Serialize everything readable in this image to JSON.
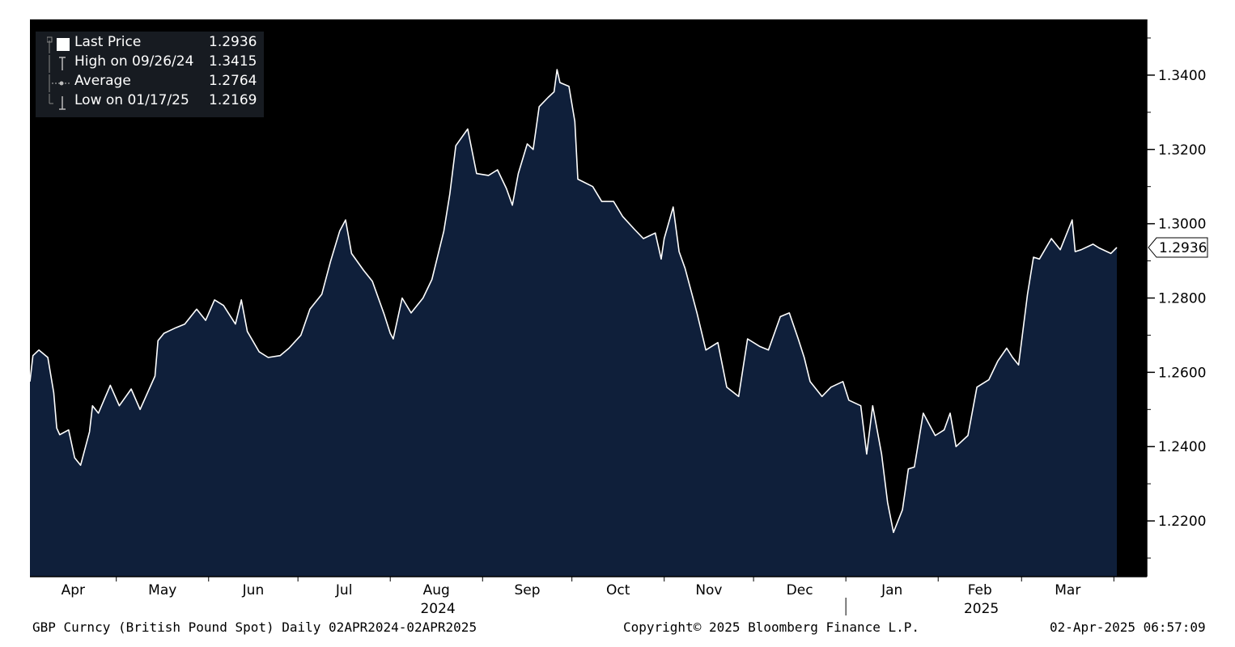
{
  "legend": {
    "items": [
      {
        "label": "Last Price",
        "value": "1.2936",
        "icon": "white-square-icon"
      },
      {
        "label": "High on 09/26/24",
        "value": "1.3415",
        "icon": "high-marker-icon"
      },
      {
        "label": "Average",
        "value": "1.2764",
        "icon": "average-line-icon"
      },
      {
        "label": "Low on 01/17/25",
        "value": "1.2169",
        "icon": "low-marker-icon"
      }
    ]
  },
  "footer": {
    "left": "GBP Curncy (British Pound Spot)  Daily 02APR2024-02APR2025",
    "center": "Copyright© 2025 Bloomberg Finance L.P.",
    "right": "02-Apr-2025 06:57:09"
  },
  "last_price_tag": "1.2936",
  "colors": {
    "plot_background": "#000000",
    "area_fill": "#0f1f3a",
    "line": "#ffffff",
    "page_background": "#ffffff"
  },
  "chart_data": {
    "type": "area",
    "title": "",
    "xlabel": "",
    "ylabel": "",
    "y_axis_side": "right",
    "ylim": [
      1.205,
      1.355
    ],
    "y_ticks": [
      "1.2200",
      "1.2400",
      "1.2600",
      "1.2800",
      "1.3000",
      "1.3200",
      "1.3400"
    ],
    "x_range": [
      "2024-04-02",
      "2025-04-02"
    ],
    "month_labels": [
      "Apr",
      "May",
      "Jun",
      "Jul",
      "Aug",
      "Sep",
      "Oct",
      "Nov",
      "Dec",
      "Jan",
      "Feb",
      "Mar"
    ],
    "year_labels": [
      "2024",
      "2025"
    ],
    "grid": false,
    "legend_position": "top-left",
    "series": [
      {
        "name": "Last Price",
        "x": [
          "2024-04-02",
          "2024-04-03",
          "2024-04-05",
          "2024-04-08",
          "2024-04-10",
          "2024-04-11",
          "2024-04-12",
          "2024-04-15",
          "2024-04-17",
          "2024-04-19",
          "2024-04-22",
          "2024-04-23",
          "2024-04-25",
          "2024-04-29",
          "2024-05-02",
          "2024-05-06",
          "2024-05-09",
          "2024-05-14",
          "2024-05-15",
          "2024-05-17",
          "2024-05-21",
          "2024-05-24",
          "2024-05-28",
          "2024-05-31",
          "2024-06-03",
          "2024-06-06",
          "2024-06-10",
          "2024-06-12",
          "2024-06-14",
          "2024-06-18",
          "2024-06-21",
          "2024-06-25",
          "2024-06-28",
          "2024-07-02",
          "2024-07-05",
          "2024-07-09",
          "2024-07-12",
          "2024-07-15",
          "2024-07-17",
          "2024-07-19",
          "2024-07-23",
          "2024-07-26",
          "2024-07-30",
          "2024-08-01",
          "2024-08-02",
          "2024-08-05",
          "2024-08-08",
          "2024-08-12",
          "2024-08-15",
          "2024-08-19",
          "2024-08-21",
          "2024-08-23",
          "2024-08-27",
          "2024-08-30",
          "2024-09-03",
          "2024-09-06",
          "2024-09-09",
          "2024-09-11",
          "2024-09-13",
          "2024-09-16",
          "2024-09-18",
          "2024-09-20",
          "2024-09-23",
          "2024-09-25",
          "2024-09-26",
          "2024-09-27",
          "2024-09-30",
          "2024-10-02",
          "2024-10-03",
          "2024-10-08",
          "2024-10-11",
          "2024-10-15",
          "2024-10-18",
          "2024-10-22",
          "2024-10-25",
          "2024-10-29",
          "2024-10-31",
          "2024-11-01",
          "2024-11-04",
          "2024-11-06",
          "2024-11-08",
          "2024-11-12",
          "2024-11-15",
          "2024-11-19",
          "2024-11-22",
          "2024-11-26",
          "2024-11-29",
          "2024-12-03",
          "2024-12-06",
          "2024-12-10",
          "2024-12-13",
          "2024-12-16",
          "2024-12-18",
          "2024-12-20",
          "2024-12-24",
          "2024-12-27",
          "2024-12-31",
          "2025-01-02",
          "2025-01-06",
          "2025-01-08",
          "2025-01-10",
          "2025-01-13",
          "2025-01-15",
          "2025-01-17",
          "2025-01-20",
          "2025-01-22",
          "2025-01-24",
          "2025-01-27",
          "2025-01-29",
          "2025-01-31",
          "2025-02-03",
          "2025-02-05",
          "2025-02-07",
          "2025-02-11",
          "2025-02-14",
          "2025-02-18",
          "2025-02-21",
          "2025-02-24",
          "2025-02-26",
          "2025-02-28",
          "2025-03-03",
          "2025-03-05",
          "2025-03-07",
          "2025-03-11",
          "2025-03-14",
          "2025-03-18",
          "2025-03-19",
          "2025-03-21",
          "2025-03-25",
          "2025-03-27",
          "2025-03-31",
          "2025-04-02"
        ],
        "y": [
          1.2575,
          1.2645,
          1.266,
          1.264,
          1.2545,
          1.245,
          1.2432,
          1.2445,
          1.237,
          1.235,
          1.244,
          1.251,
          1.249,
          1.2565,
          1.251,
          1.2555,
          1.25,
          1.259,
          1.2685,
          1.2705,
          1.272,
          1.273,
          1.277,
          1.274,
          1.2795,
          1.278,
          1.273,
          1.2795,
          1.271,
          1.2655,
          1.264,
          1.2645,
          1.2665,
          1.27,
          1.277,
          1.281,
          1.29,
          1.298,
          1.301,
          1.292,
          1.2875,
          1.2845,
          1.2755,
          1.2705,
          1.269,
          1.28,
          1.276,
          1.28,
          1.285,
          1.298,
          1.308,
          1.321,
          1.3255,
          1.3135,
          1.313,
          1.3145,
          1.3095,
          1.305,
          1.3135,
          1.3215,
          1.32,
          1.3315,
          1.334,
          1.3355,
          1.3415,
          1.338,
          1.337,
          1.3275,
          1.312,
          1.31,
          1.306,
          1.306,
          1.302,
          1.2985,
          1.296,
          1.2975,
          1.2905,
          1.296,
          1.3045,
          1.2925,
          1.288,
          1.276,
          1.266,
          1.268,
          1.256,
          1.2535,
          1.269,
          1.267,
          1.266,
          1.275,
          1.276,
          1.269,
          1.264,
          1.2575,
          1.2535,
          1.256,
          1.2575,
          1.2525,
          1.251,
          1.238,
          1.251,
          1.238,
          1.225,
          1.2169,
          1.223,
          1.234,
          1.2345,
          1.249,
          1.246,
          1.243,
          1.2445,
          1.249,
          1.24,
          1.243,
          1.256,
          1.258,
          1.263,
          1.2665,
          1.264,
          1.262,
          1.281,
          1.291,
          1.2905,
          1.296,
          1.293,
          1.301,
          1.2925,
          1.293,
          1.2945,
          1.2935,
          1.292,
          1.2936
        ]
      }
    ]
  }
}
